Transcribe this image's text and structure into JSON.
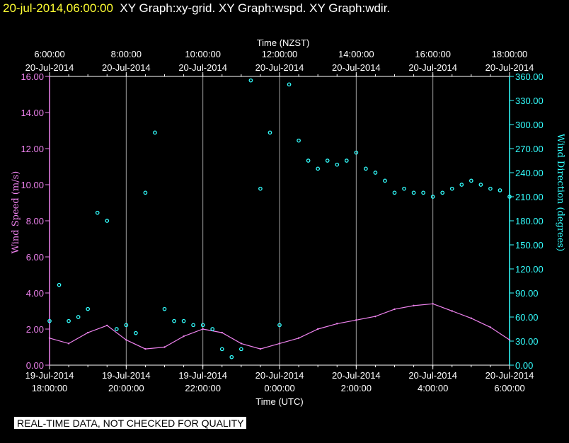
{
  "header": {
    "timestamp": "20-jul-2014,06:00:00",
    "graphs_text": "XY Graph:xy-grid.  XY Graph:wspd.  XY Graph:wdir."
  },
  "disclaimer": "REAL-TIME DATA, NOT CHECKED FOR QUALITY",
  "colors": {
    "background": "#000000",
    "axes": "#ffffff",
    "grid": "#a0a0a0",
    "wind_speed": "#ee82ee",
    "wind_direction": "#33ffff",
    "timestamp": "#ffff33"
  },
  "chart_data": {
    "type": "line",
    "title": "",
    "top_axis": {
      "label": "Time (NZST)",
      "ticks": [
        {
          "time": "6:00:00",
          "date": "20-Jul-2014"
        },
        {
          "time": "8:00:00",
          "date": "20-Jul-2014"
        },
        {
          "time": "10:00:00",
          "date": "20-Jul-2014"
        },
        {
          "time": "12:00:00",
          "date": "20-Jul-2014"
        },
        {
          "time": "14:00:00",
          "date": "20-Jul-2014"
        },
        {
          "time": "16:00:00",
          "date": "20-Jul-2014"
        },
        {
          "time": "18:00:00",
          "date": "20-Jul-2014"
        }
      ]
    },
    "bottom_axis": {
      "label": "Time (UTC)",
      "range_utc": [
        "2014-07-19 18:00",
        "2014-07-20 06:00"
      ],
      "ticks": [
        {
          "date": "19-Jul-2014",
          "time": "18:00:00"
        },
        {
          "date": "19-Jul-2014",
          "time": "20:00:00"
        },
        {
          "date": "19-Jul-2014",
          "time": "22:00:00"
        },
        {
          "date": "20-Jul-2014",
          "time": "0:00:00"
        },
        {
          "date": "20-Jul-2014",
          "time": "2:00:00"
        },
        {
          "date": "20-Jul-2014",
          "time": "4:00:00"
        },
        {
          "date": "20-Jul-2014",
          "time": "6:00:00"
        }
      ]
    },
    "left_axis": {
      "label": "Wind Speed (m/s)",
      "ylim": [
        0,
        16
      ],
      "ticks": [
        "0.00",
        "2.00",
        "4.00",
        "6.00",
        "8.00",
        "10.00",
        "12.00",
        "14.00",
        "16.00"
      ]
    },
    "right_axis": {
      "label": "Wind Direction (degrees)",
      "ylim": [
        0,
        360
      ],
      "ticks": [
        "0.00",
        "30.00",
        "60.00",
        "90.00",
        "120.00",
        "150.00",
        "180.00",
        "210.00",
        "240.00",
        "270.00",
        "300.00",
        "330.00",
        "360.00"
      ]
    },
    "grid": true,
    "series": [
      {
        "name": "Wind Speed (m/s)",
        "style": "line",
        "x_utc": [
          "2014-07-19 18:00",
          "2014-07-19 18:30",
          "2014-07-19 19:00",
          "2014-07-19 19:30",
          "2014-07-19 20:00",
          "2014-07-19 20:30",
          "2014-07-19 21:00",
          "2014-07-19 21:30",
          "2014-07-19 22:00",
          "2014-07-19 22:30",
          "2014-07-19 23:00",
          "2014-07-19 23:30",
          "2014-07-20 00:00",
          "2014-07-20 00:30",
          "2014-07-20 01:00",
          "2014-07-20 01:30",
          "2014-07-20 02:00",
          "2014-07-20 02:30",
          "2014-07-20 03:00",
          "2014-07-20 03:30",
          "2014-07-20 04:00",
          "2014-07-20 04:30",
          "2014-07-20 05:00",
          "2014-07-20 05:30",
          "2014-07-20 06:00"
        ],
        "values": [
          1.5,
          1.2,
          1.8,
          2.2,
          1.4,
          0.9,
          1.0,
          1.6,
          2.0,
          1.8,
          1.2,
          0.9,
          1.2,
          1.5,
          2.0,
          2.3,
          2.5,
          2.7,
          3.1,
          3.3,
          3.4,
          3.0,
          2.6,
          2.1,
          1.4
        ]
      },
      {
        "name": "Wind Direction (degrees)",
        "style": "markers",
        "x_utc": [
          "2014-07-19 18:00",
          "2014-07-19 18:15",
          "2014-07-19 18:30",
          "2014-07-19 18:45",
          "2014-07-19 19:00",
          "2014-07-19 19:15",
          "2014-07-19 19:30",
          "2014-07-19 19:45",
          "2014-07-19 20:00",
          "2014-07-19 20:15",
          "2014-07-19 20:30",
          "2014-07-19 20:45",
          "2014-07-19 21:00",
          "2014-07-19 21:15",
          "2014-07-19 21:30",
          "2014-07-19 21:45",
          "2014-07-19 22:00",
          "2014-07-19 22:15",
          "2014-07-19 22:30",
          "2014-07-19 22:45",
          "2014-07-19 23:00",
          "2014-07-19 23:15",
          "2014-07-19 23:30",
          "2014-07-19 23:45",
          "2014-07-20 00:00",
          "2014-07-20 00:15",
          "2014-07-20 00:30",
          "2014-07-20 00:45",
          "2014-07-20 01:00",
          "2014-07-20 01:15",
          "2014-07-20 01:30",
          "2014-07-20 01:45",
          "2014-07-20 02:00",
          "2014-07-20 02:15",
          "2014-07-20 02:30",
          "2014-07-20 02:45",
          "2014-07-20 03:00",
          "2014-07-20 03:15",
          "2014-07-20 03:30",
          "2014-07-20 03:45",
          "2014-07-20 04:00",
          "2014-07-20 04:15",
          "2014-07-20 04:30",
          "2014-07-20 04:45",
          "2014-07-20 05:00",
          "2014-07-20 05:15",
          "2014-07-20 05:30",
          "2014-07-20 05:45",
          "2014-07-20 06:00"
        ],
        "values": [
          55,
          100,
          55,
          60,
          70,
          190,
          180,
          45,
          50,
          40,
          215,
          290,
          70,
          55,
          55,
          50,
          50,
          45,
          20,
          10,
          20,
          355,
          220,
          290,
          50,
          350,
          280,
          255,
          245,
          255,
          250,
          255,
          265,
          245,
          240,
          230,
          215,
          220,
          215,
          215,
          210,
          215,
          220,
          225,
          230,
          225,
          220,
          218,
          210
        ]
      }
    ]
  }
}
